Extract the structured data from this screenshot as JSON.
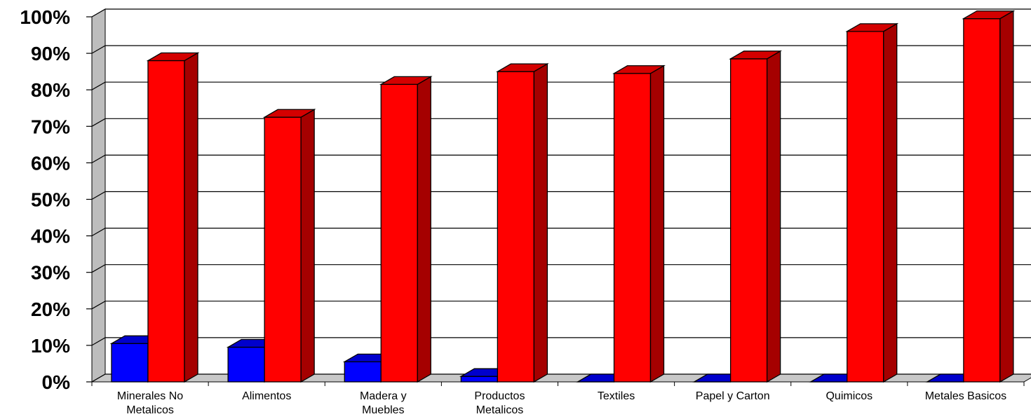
{
  "chart_data": {
    "type": "bar",
    "style": "3d-clustered-column",
    "categories": [
      [
        "Minerales No",
        "Metalicos"
      ],
      [
        "Alimentos"
      ],
      [
        "Madera y",
        "Muebles"
      ],
      [
        "Productos",
        "Metalicos"
      ],
      [
        "Textiles"
      ],
      [
        "Papel y Carton"
      ],
      [
        "Quimicos"
      ],
      [
        "Metales Basicos"
      ]
    ],
    "series": [
      {
        "values": [
          10.5,
          9.5,
          5.5,
          1.5,
          0,
          0,
          0,
          0
        ],
        "color": "#0000ff",
        "side_color": "#00008b",
        "top_color": "#0000cc"
      },
      {
        "values": [
          88,
          72.5,
          81.5,
          85,
          84.5,
          88.5,
          96,
          99.5
        ],
        "color": "#ff0000",
        "side_color": "#a50000",
        "top_color": "#d40000"
      }
    ],
    "ylim": [
      0,
      100
    ],
    "yticks": [
      "0%",
      "10%",
      "20%",
      "30%",
      "40%",
      "50%",
      "60%",
      "70%",
      "80%",
      "90%",
      "100%"
    ],
    "grid": true,
    "legend": "none",
    "title": "",
    "xlabel": "",
    "ylabel": ""
  }
}
